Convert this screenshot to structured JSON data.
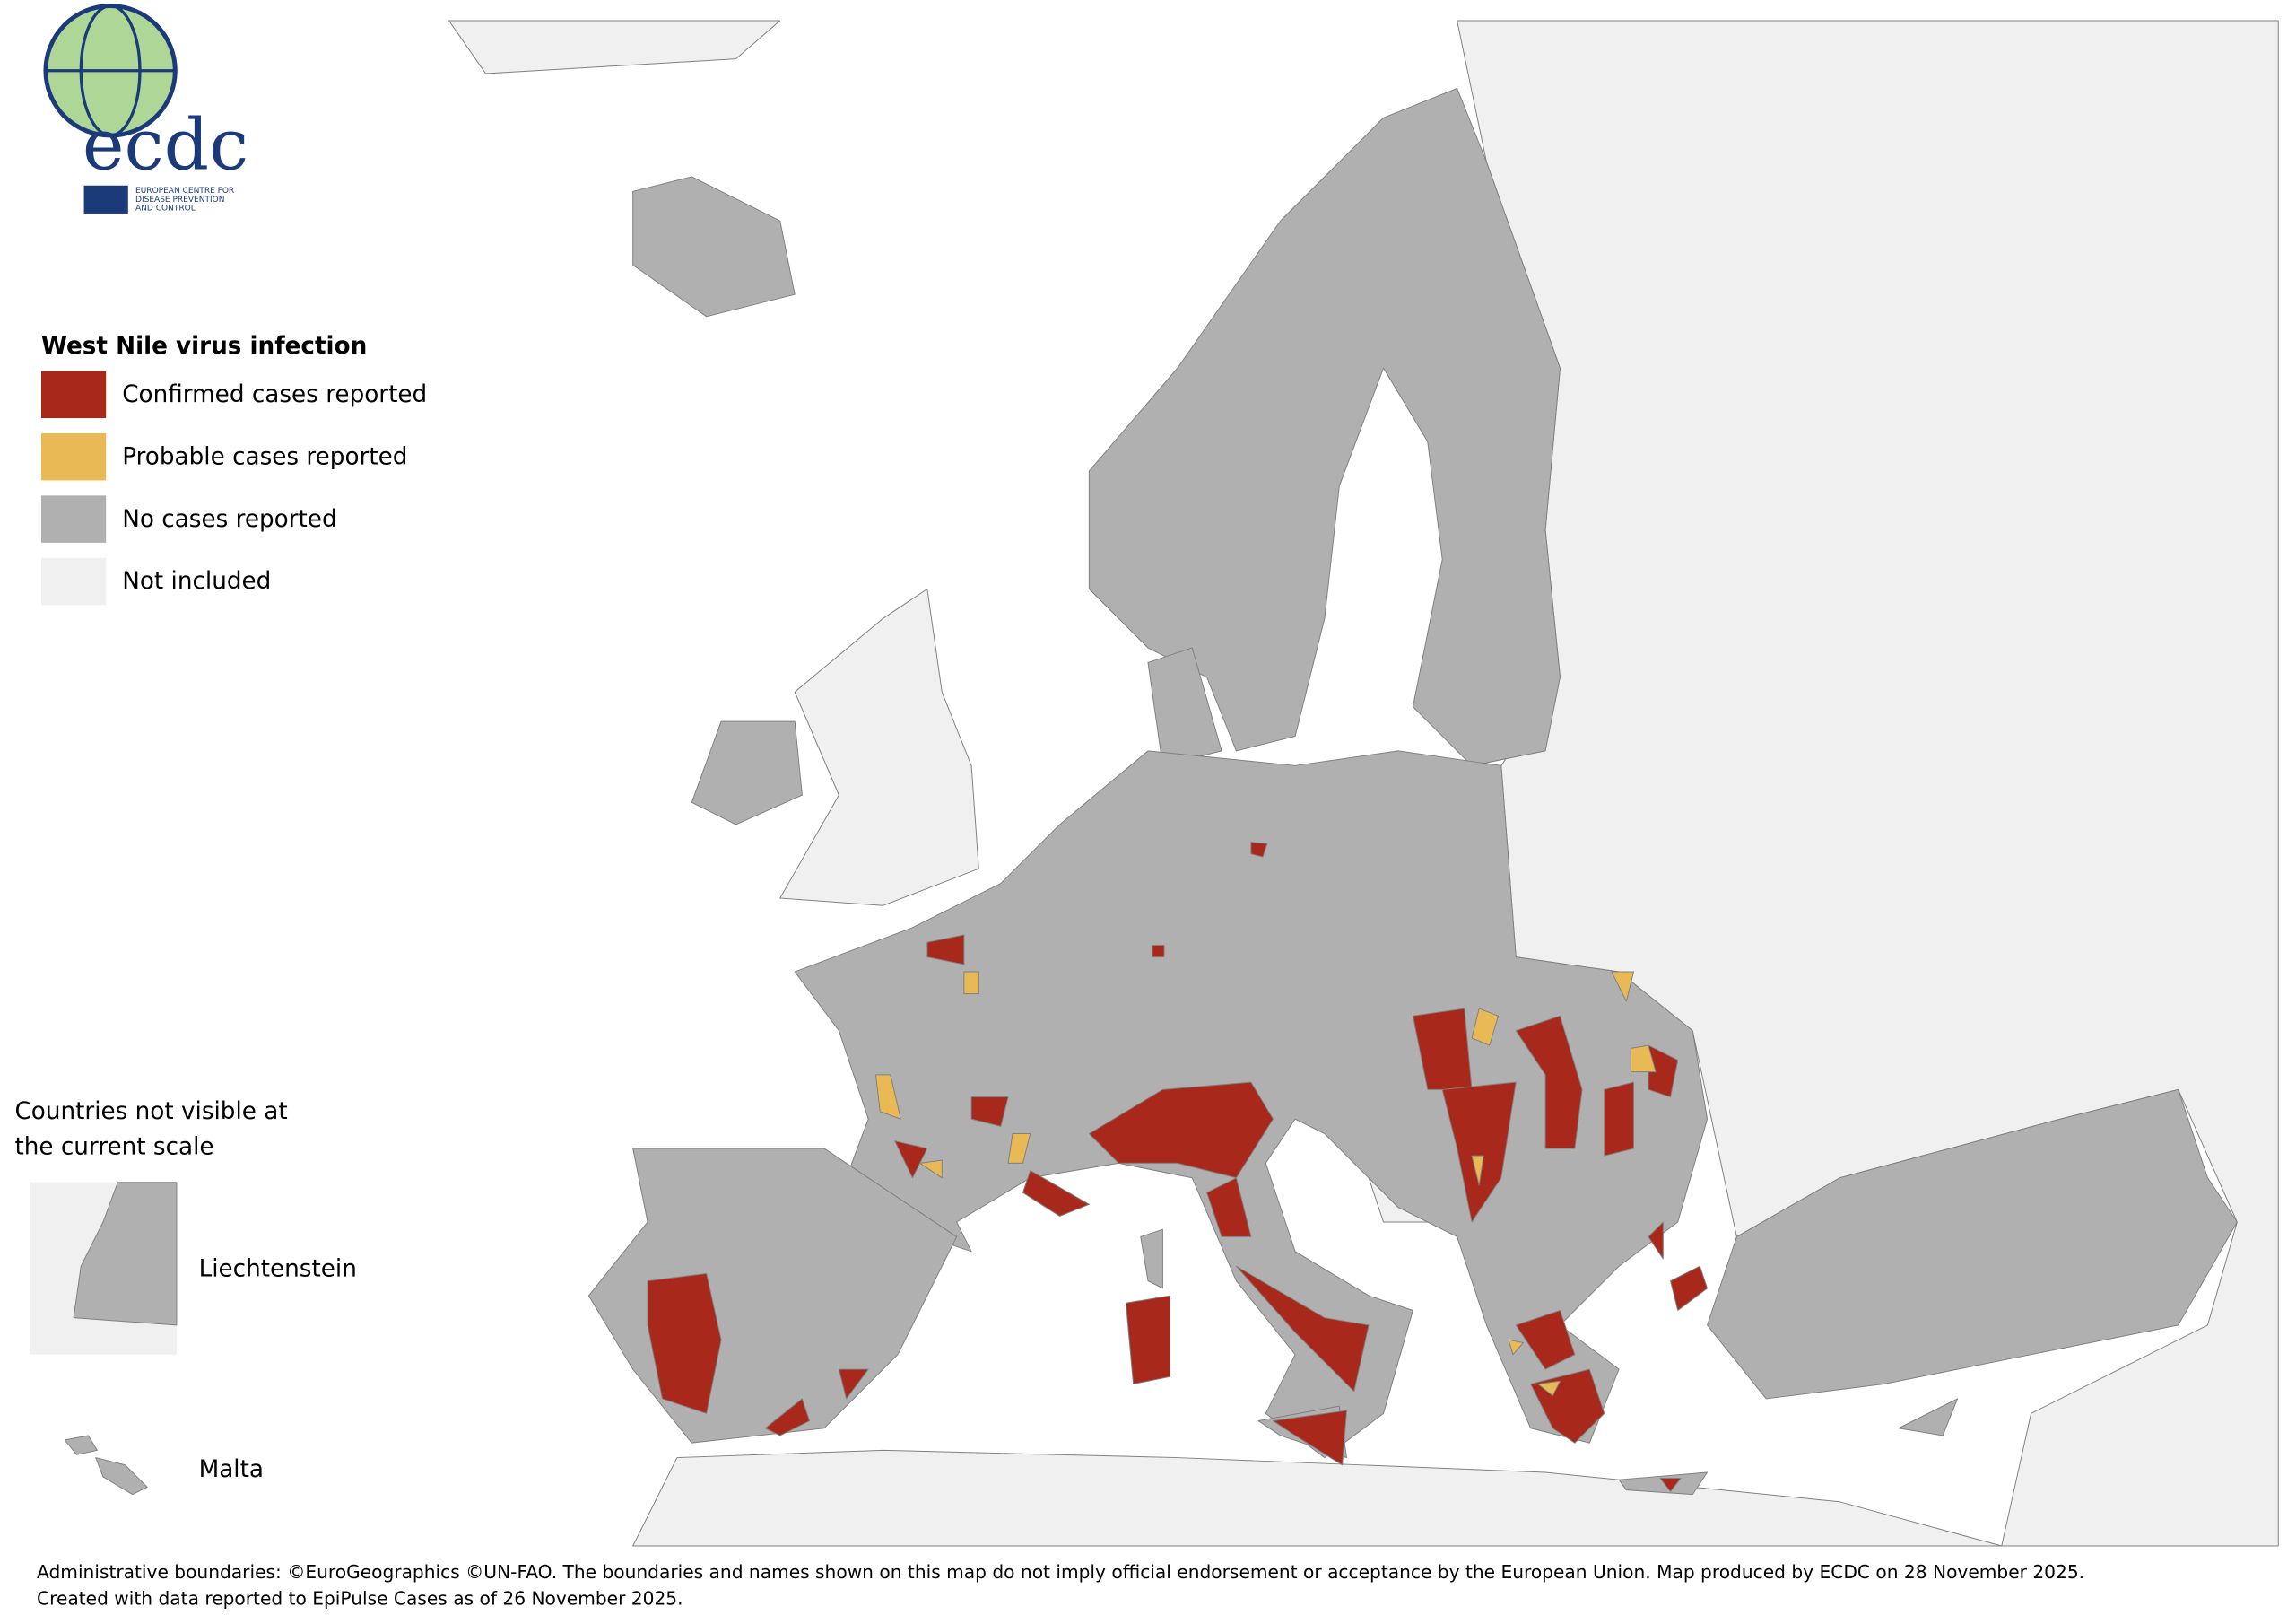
{
  "logo": {
    "acronym": "ecdc",
    "lines": [
      "EUROPEAN CENTRE FOR",
      "DISEASE PREVENTION",
      "AND CONTROL"
    ]
  },
  "legend": {
    "title": "West Nile virus infection",
    "items": [
      {
        "label": "Confirmed cases reported",
        "color": "#a8291b"
      },
      {
        "label": "Probable cases reported",
        "color": "#e8b954"
      },
      {
        "label": "No cases reported",
        "color": "#b0b0b0"
      },
      {
        "label": "Not included",
        "color": "#f0f0f0"
      }
    ]
  },
  "insets": {
    "title_lines": [
      "Countries not visible at",
      "the current scale"
    ],
    "labels": [
      "Liechtenstein",
      "Malta"
    ]
  },
  "footer": [
    "Administrative boundaries: ©EuroGeographics ©UN-FAO. The boundaries and names shown on this map do not imply official endorsement or acceptance by the European Union. Map produced by ECDC on 28 November 2025.",
    "Created with data reported to EpiPulse Cases as of 26 November 2025."
  ]
}
